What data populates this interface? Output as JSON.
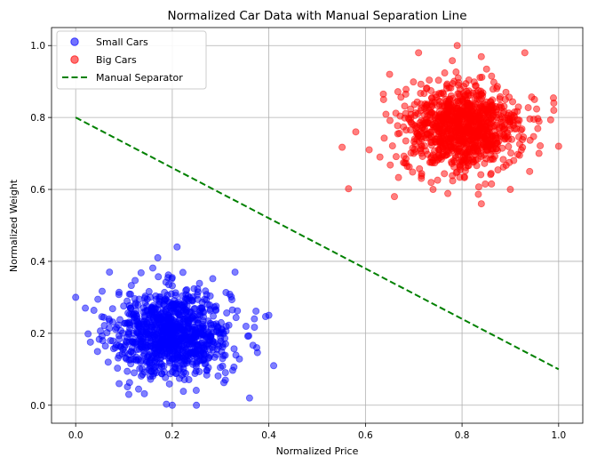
{
  "chart_data": {
    "type": "scatter",
    "title": "Normalized Car Data with Manual Separation Line",
    "xlabel": "Normalized Price",
    "ylabel": "Normalized Weight",
    "xlim": [
      -0.05,
      1.05
    ],
    "ylim": [
      -0.05,
      1.05
    ],
    "xticks": [
      "0.0",
      "0.2",
      "0.4",
      "0.6",
      "0.8",
      "1.0"
    ],
    "yticks": [
      "0.0",
      "0.2",
      "0.4",
      "0.6",
      "0.8",
      "1.0"
    ],
    "grid": true,
    "legend_position": "top-left",
    "series": [
      {
        "name": "Small Cars",
        "kind": "scatter",
        "color": "#0000ff",
        "center": [
          0.2,
          0.2
        ],
        "approx_std": 0.06,
        "points": [
          [
            0.0,
            0.3
          ],
          [
            0.2,
            0.0
          ],
          [
            0.21,
            0.44
          ],
          [
            0.41,
            0.11
          ],
          [
            0.4,
            0.25
          ],
          [
            0.07,
            0.37
          ],
          [
            0.02,
            0.27
          ],
          [
            0.25,
            0.0
          ],
          [
            0.36,
            0.02
          ],
          [
            0.37,
            0.24
          ],
          [
            0.11,
            0.03
          ],
          [
            0.17,
            0.41
          ],
          [
            0.33,
            0.37
          ],
          [
            0.31,
            0.07
          ],
          [
            0.09,
            0.06
          ]
        ]
      },
      {
        "name": "Big Cars",
        "kind": "scatter",
        "color": "#ff0000",
        "center": [
          0.8,
          0.77
        ],
        "approx_std": 0.06,
        "points": [
          [
            0.58,
            0.76
          ],
          [
            0.79,
            1.0
          ],
          [
            0.93,
            0.98
          ],
          [
            0.66,
            0.58
          ],
          [
            0.84,
            0.56
          ],
          [
            0.65,
            0.92
          ],
          [
            0.99,
            0.84
          ],
          [
            1.0,
            0.72
          ],
          [
            0.63,
            0.69
          ],
          [
            0.94,
            0.65
          ],
          [
            0.71,
            0.98
          ],
          [
            0.9,
            0.6
          ],
          [
            0.99,
            0.82
          ],
          [
            0.74,
            0.6
          ],
          [
            0.95,
            0.85
          ]
        ]
      },
      {
        "name": "Manual Separator",
        "kind": "line",
        "style": "dashed",
        "color": "#008000",
        "x": [
          0.0,
          1.0
        ],
        "y": [
          0.8,
          0.1
        ]
      }
    ]
  }
}
